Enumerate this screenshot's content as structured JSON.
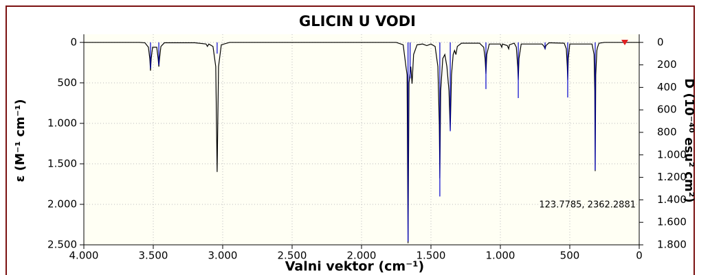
{
  "chart_data": {
    "type": "line",
    "title": "GLICIN U VODI",
    "xlabel": "Valni vektor (cm⁻¹)",
    "ylabel": "ε (M⁻¹ cm⁻¹)",
    "y2label": "D (10⁻⁴⁰ esu² cm²)",
    "annotation": "123.7785, 2362.2881",
    "xlim": [
      4000,
      0
    ],
    "ylim": [
      -100,
      2500
    ],
    "y2lim": [
      -72,
      1800
    ],
    "xticks": [
      {
        "value": 4000,
        "label": "4.000"
      },
      {
        "value": 3500,
        "label": "3.500"
      },
      {
        "value": 3000,
        "label": "3.000"
      },
      {
        "value": 2500,
        "label": "2.500"
      },
      {
        "value": 2000,
        "label": "2.000"
      },
      {
        "value": 1500,
        "label": "1.500"
      },
      {
        "value": 1000,
        "label": "1.000"
      },
      500,
      0
    ],
    "yticks": [
      0,
      500,
      {
        "value": 1000,
        "label": "1.000"
      },
      {
        "value": 1500,
        "label": "1.500"
      },
      {
        "value": 2000,
        "label": "2.000"
      },
      {
        "value": 2500,
        "label": "2.500"
      }
    ],
    "y2ticks": [
      0,
      200,
      400,
      600,
      800,
      {
        "value": 1000,
        "label": "1.000"
      },
      {
        "value": 1200,
        "label": "1.200"
      },
      {
        "value": 1400,
        "label": "1.400"
      },
      {
        "value": 1600,
        "label": "1.600"
      },
      {
        "value": 1800,
        "label": "1.800"
      }
    ],
    "grid": true,
    "inverted_y": true,
    "series": [
      {
        "type": "line",
        "color": "#000000",
        "x": [
          4000,
          3600,
          3560,
          3535,
          3525,
          3520,
          3515,
          3505,
          3475,
          3465,
          3460,
          3455,
          3445,
          3420,
          3200,
          3120,
          3110,
          3100,
          3070,
          3050,
          3040,
          3030,
          3010,
          2950,
          1750,
          1700,
          1680,
          1672,
          1665,
          1658,
          1645,
          1636,
          1625,
          1600,
          1560,
          1530,
          1500,
          1470,
          1450,
          1440,
          1436,
          1430,
          1415,
          1400,
          1385,
          1370,
          1361,
          1352,
          1340,
          1330,
          1320,
          1310,
          1280,
          1150,
          1120,
          1110,
          1104,
          1098,
          1080,
          1000,
          990,
          985,
          950,
          940,
          935,
          900,
          885,
          875,
          871,
          866,
          850,
          700,
          685,
          678,
          672,
          650,
          540,
          525,
          518,
          515,
          511,
          500,
          340,
          325,
          320,
          317,
          313,
          305,
          300,
          290,
          250,
          0
        ],
        "values": [
          0,
          0,
          5,
          60,
          200,
          350,
          200,
          60,
          60,
          200,
          300,
          200,
          50,
          5,
          5,
          20,
          50,
          20,
          50,
          300,
          1600,
          300,
          30,
          0,
          0,
          30,
          300,
          400,
          2480,
          500,
          300,
          510,
          150,
          30,
          20,
          40,
          20,
          50,
          300,
          1000,
          1680,
          600,
          200,
          150,
          300,
          600,
          1085,
          400,
          150,
          100,
          150,
          50,
          10,
          10,
          60,
          200,
          390,
          150,
          20,
          20,
          60,
          20,
          40,
          80,
          30,
          10,
          60,
          300,
          466,
          200,
          20,
          20,
          50,
          80,
          40,
          5,
          10,
          80,
          300,
          466,
          200,
          20,
          20,
          150,
          600,
          1590,
          400,
          100,
          60,
          10,
          0,
          0
        ]
      },
      {
        "type": "stick",
        "color": "#0000cc",
        "axis": "y2",
        "x": [
          3520,
          3460,
          3040,
          1665,
          1650,
          1436,
          1361,
          1104,
          871,
          678,
          515,
          317
        ],
        "values": [
          230,
          200,
          100,
          1770,
          320,
          1370,
          790,
          415,
          495,
          60,
          490,
          1135
        ]
      }
    ]
  }
}
